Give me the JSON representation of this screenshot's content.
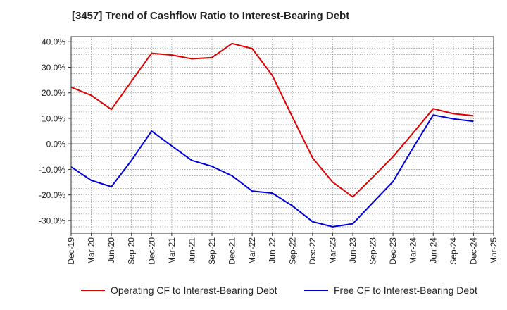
{
  "chart_data": {
    "type": "line",
    "title": "[3457]  Trend of Cashflow Ratio to Interest-Bearing Debt",
    "xlabel": "",
    "ylabel": "",
    "ylim": [
      -35,
      42
    ],
    "y_ticks": [
      "40.0%",
      "30.0%",
      "20.0%",
      "10.0%",
      "0.0%",
      "-10.0%",
      "-20.0%",
      "-30.0%"
    ],
    "y_tick_values": [
      40,
      30,
      20,
      10,
      0,
      -10,
      -20,
      -30
    ],
    "x_ticks": [
      "Dec-19",
      "Mar-20",
      "Jun-20",
      "Sep-20",
      "Dec-20",
      "Mar-21",
      "Jun-21",
      "Sep-21",
      "Dec-21",
      "Mar-22",
      "Jun-22",
      "Sep-22",
      "Dec-22",
      "Mar-23",
      "Jun-23",
      "Sep-23",
      "Dec-23",
      "Mar-24",
      "Jun-24",
      "Sep-24",
      "Dec-24",
      "Mar-25"
    ],
    "grid": true,
    "legend_position": "bottom",
    "series": [
      {
        "name": "Operating CF to Interest-Bearing Debt",
        "color": "#e00000",
        "values": [
          22.2,
          19.0,
          13.5,
          24.5,
          35.5,
          34.8,
          33.3,
          33.8,
          39.3,
          37.3,
          26.8,
          10.5,
          -5.5,
          -15.0,
          -20.8,
          -13.0,
          -5.0,
          4.3,
          13.8,
          11.8,
          11.0
        ]
      },
      {
        "name": "Free CF to Interest-Bearing Debt",
        "color": "#0000dd",
        "values": [
          -9.0,
          -14.3,
          -16.8,
          -6.5,
          5.0,
          -0.8,
          -6.5,
          -8.8,
          -12.5,
          -18.5,
          -19.3,
          -24.3,
          -30.5,
          -32.5,
          -31.3,
          -23.0,
          -14.8,
          -1.5,
          11.3,
          9.8,
          8.8
        ]
      }
    ]
  }
}
